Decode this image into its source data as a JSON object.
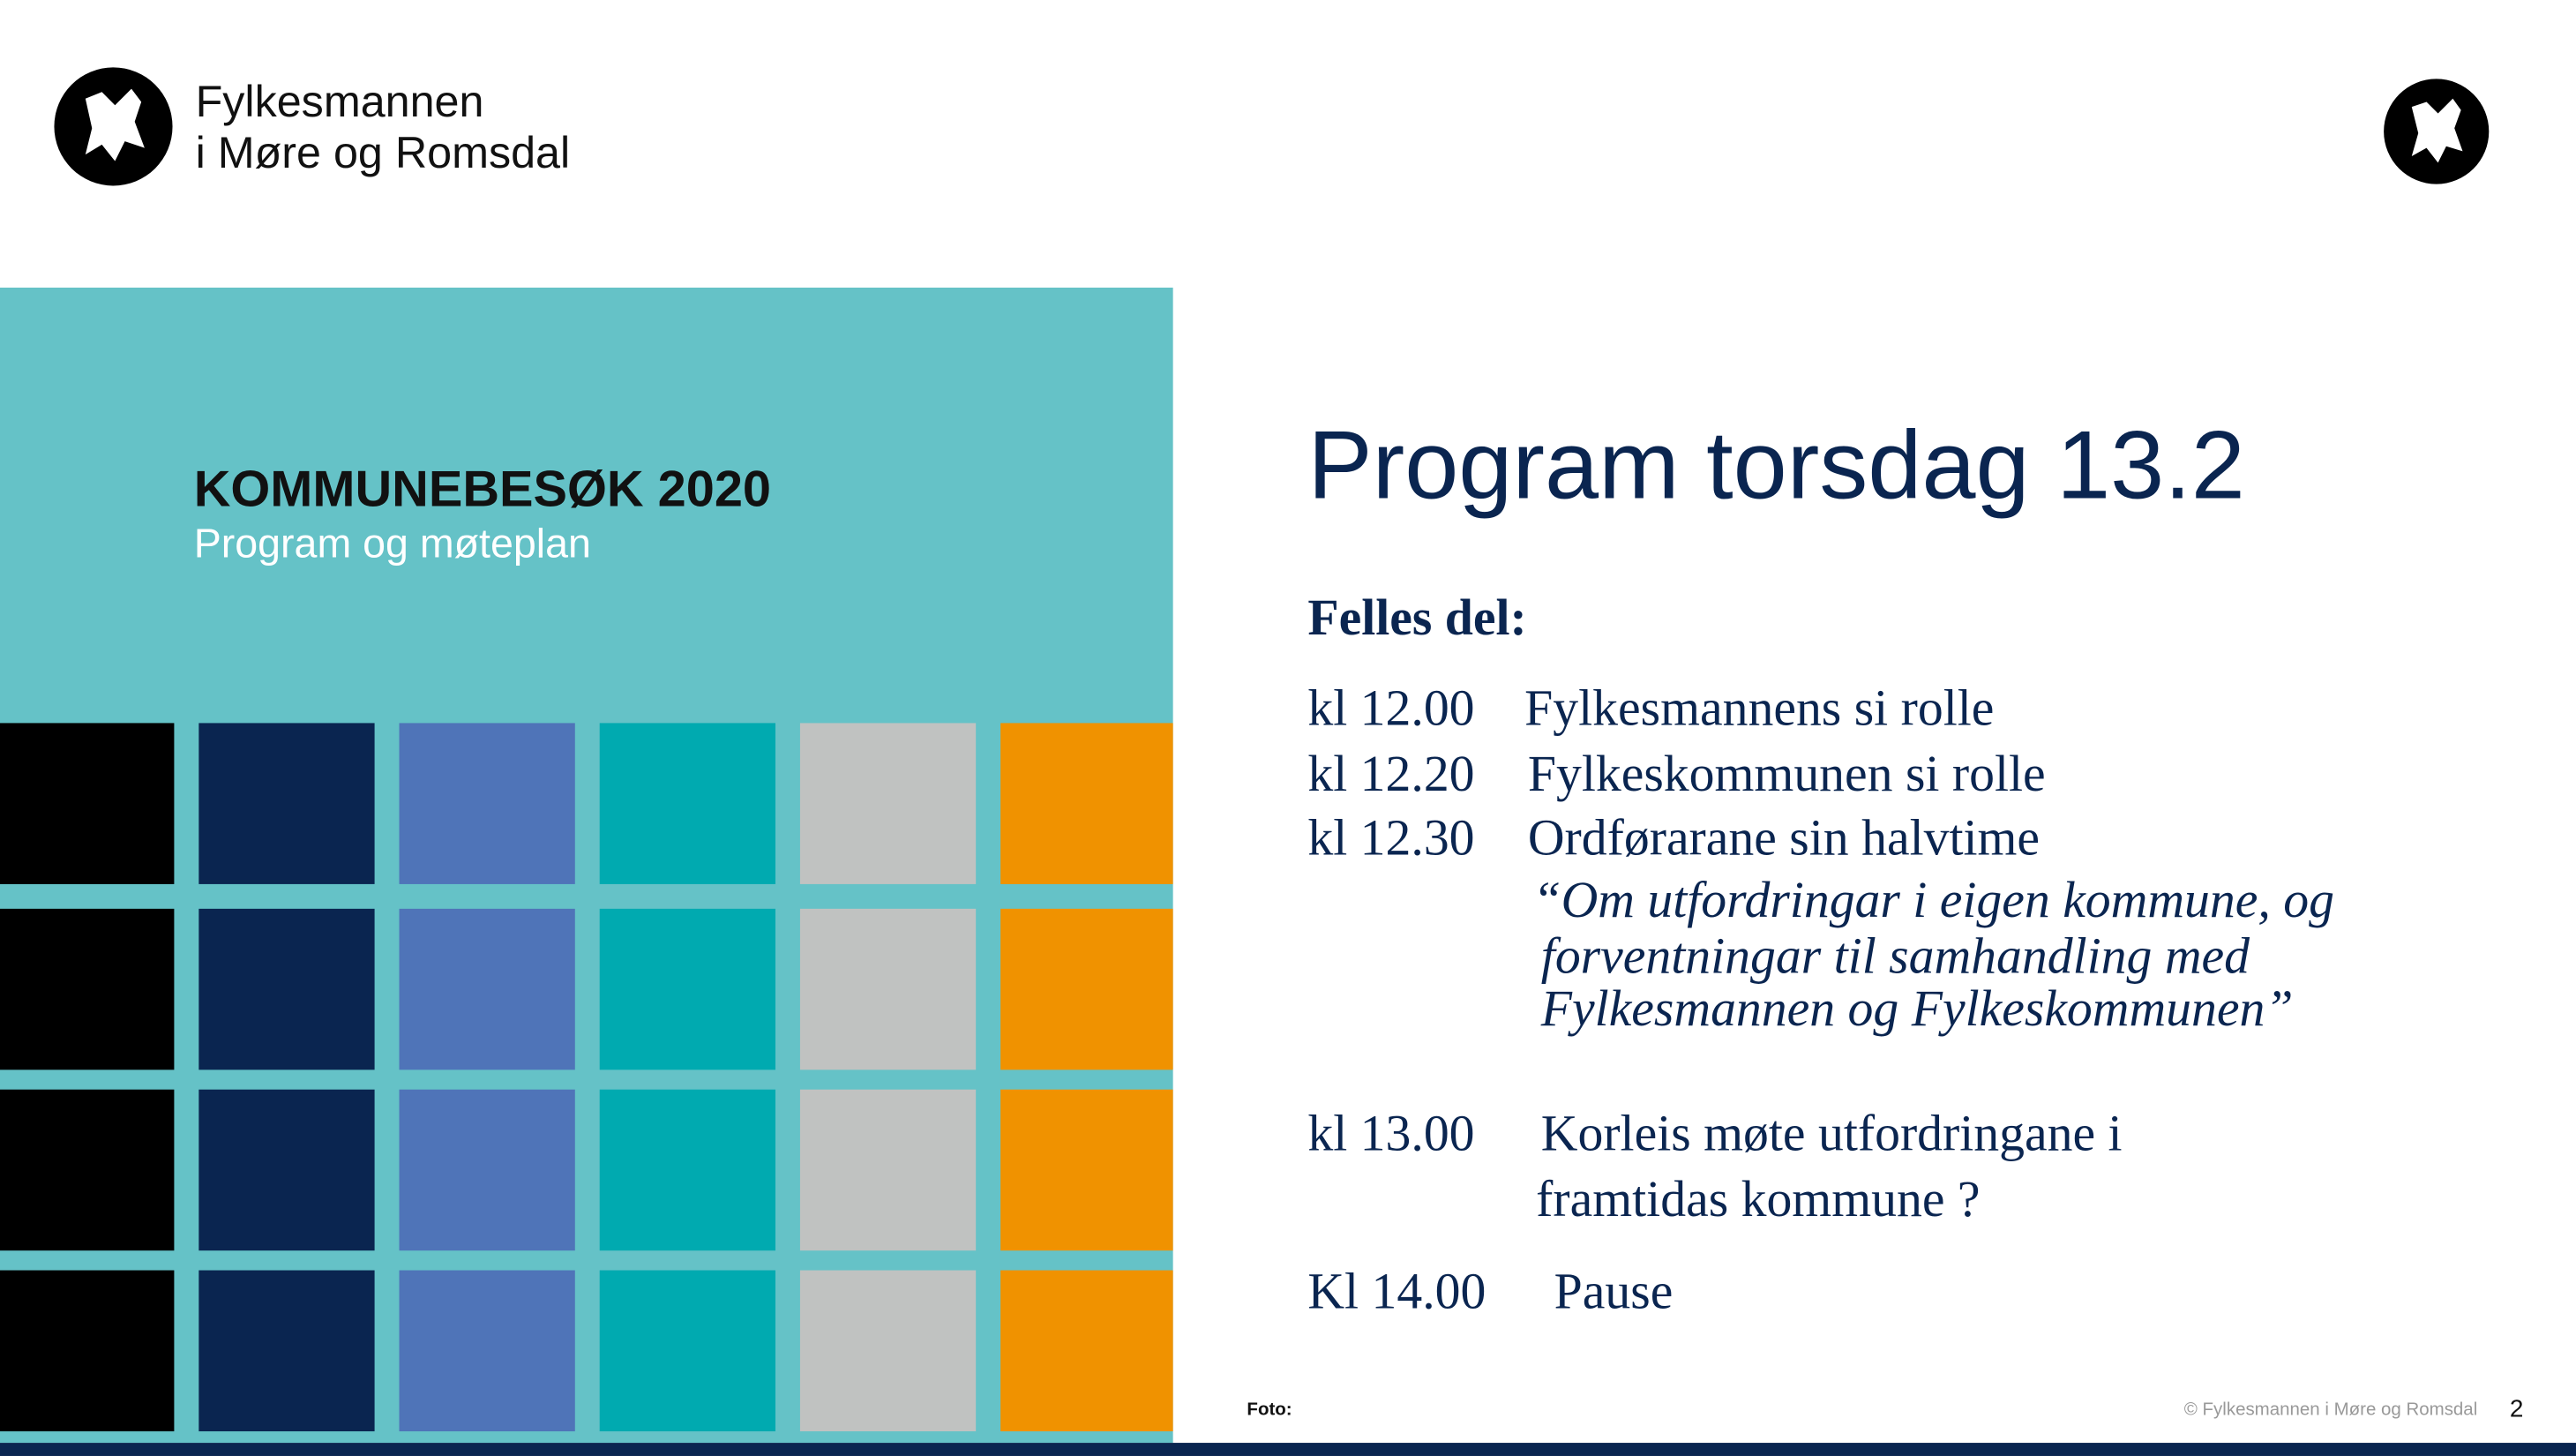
{
  "header": {
    "org_name": [
      "Fylkesmannen",
      "i Møre og Romsdal"
    ]
  },
  "panel": {
    "title": "KOMMUNEBESØK 2020",
    "subtitle": "Program og møteplan"
  },
  "content": {
    "title": "Program torsdag 13.2",
    "section": "Felles del:",
    "items": [
      {
        "time": "kl 12.00",
        "text": [
          "Fylkesmannens si rolle"
        ]
      },
      {
        "time": "kl 12.20",
        "text": [
          "Fylkeskommunen si rolle"
        ]
      },
      {
        "time": "kl 12.30",
        "text": [
          "Ordførarane sin halvtime"
        ]
      },
      {
        "time": "kl 13.00",
        "text": [
          "Korleis møte utfordringane i",
          "framtidas kommune ?"
        ]
      },
      {
        "time": "Kl 14.00",
        "text": [
          "Pause"
        ]
      }
    ],
    "quote": [
      "“Om utfordringar i eigen kommune, og",
      "forventningar til samhandling med",
      "Fylkesmannen og Fylkeskommunen”"
    ]
  },
  "footer": {
    "photo": "Foto:",
    "copyright": "© Fylkesmannen i Møre og Romsdal",
    "page": 2
  }
}
